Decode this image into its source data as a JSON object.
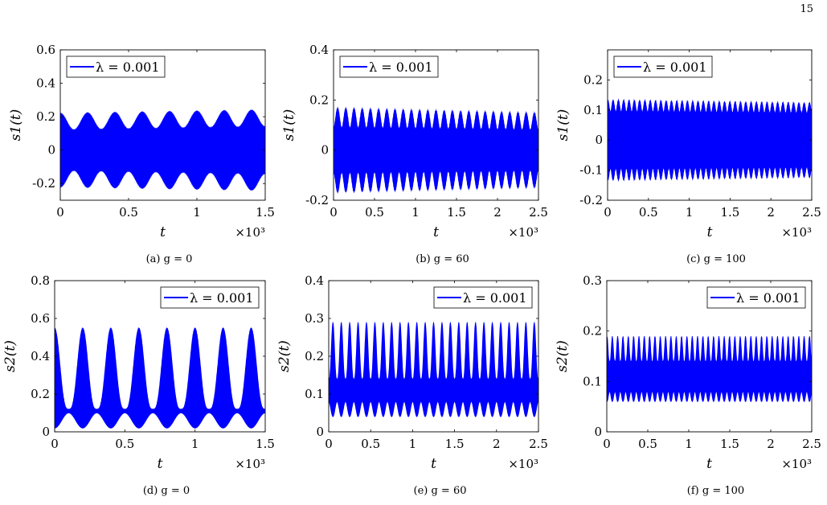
{
  "page_number": "15",
  "colors": {
    "series": "#0000ff",
    "axis": "#000000",
    "background": "#ffffff"
  },
  "chart_data": [
    {
      "type": "line",
      "caption": "(a) g = 0",
      "ylabel": "s1(t)",
      "xlabel": "t",
      "x_multiplier": "×10³",
      "xlim": [
        0,
        1.5
      ],
      "ylim": [
        -0.3,
        0.6
      ],
      "xticks": [
        0,
        0.5,
        1,
        1.5
      ],
      "xticklabels": [
        "0",
        "0.5",
        "1",
        "1.5"
      ],
      "yticks": [
        -0.2,
        0,
        0.2,
        0.4,
        0.6
      ],
      "yticklabels": [
        "-0.2",
        "0",
        "0.2",
        "0.4",
        "0.6"
      ],
      "legend": {
        "label": "λ = 0.001",
        "placement": "top-left"
      },
      "series": [
        {
          "name": "λ = 0.001",
          "color": "#0000ff",
          "envelope": {
            "center": 0,
            "amplitude_max": [
              0.22,
              0.24
            ],
            "amplitude_min": [
              0.12,
              0.14
            ],
            "slow_period": 0.2,
            "fast_cycles": 150
          }
        }
      ]
    },
    {
      "type": "line",
      "caption": "(b) g = 60",
      "ylabel": "s1(t)",
      "xlabel": "t",
      "x_multiplier": "×10³",
      "xlim": [
        0,
        2.5
      ],
      "ylim": [
        -0.2,
        0.4
      ],
      "xticks": [
        0,
        0.5,
        1,
        1.5,
        2,
        2.5
      ],
      "xticklabels": [
        "0",
        "0.5",
        "1",
        "1.5",
        "2",
        "2.5"
      ],
      "yticks": [
        -0.2,
        0,
        0.2,
        0.4
      ],
      "yticklabels": [
        "-0.2",
        "0",
        "0.2",
        "0.4"
      ],
      "legend": {
        "label": "λ = 0.001",
        "placement": "top-left"
      },
      "series": [
        {
          "name": "λ = 0.001",
          "color": "#0000ff",
          "envelope": {
            "center": 0,
            "amplitude_max": [
              0.17,
              0.15
            ],
            "amplitude_min": [
              0.09,
              0.08
            ],
            "slow_period": 0.1,
            "fast_cycles": 250
          }
        }
      ]
    },
    {
      "type": "line",
      "caption": "(c) g = 100",
      "ylabel": "s1(t)",
      "xlabel": "t",
      "x_multiplier": "×10³",
      "xlim": [
        0,
        2.5
      ],
      "ylim": [
        -0.2,
        0.3
      ],
      "xticks": [
        0,
        0.5,
        1,
        1.5,
        2,
        2.5
      ],
      "xticklabels": [
        "0",
        "0.5",
        "1",
        "1.5",
        "2",
        "2.5"
      ],
      "yticks": [
        -0.2,
        -0.1,
        0,
        0.1,
        0.2
      ],
      "yticklabels": [
        "-0.2",
        "-0.1",
        "0",
        "0.1",
        "0.2"
      ],
      "legend": {
        "label": "λ = 0.001",
        "placement": "top-left"
      },
      "series": [
        {
          "name": "λ = 0.001",
          "color": "#0000ff",
          "envelope": {
            "center": 0,
            "amplitude_max": [
              0.135,
              0.125
            ],
            "amplitude_min": [
              0.095,
              0.09
            ],
            "slow_period": 0.065,
            "fast_cycles": 300
          }
        }
      ]
    },
    {
      "type": "line",
      "caption": "(d) g = 0",
      "ylabel": "s2(t)",
      "xlabel": "t",
      "x_multiplier": "×10³",
      "xlim": [
        0,
        1.5
      ],
      "ylim": [
        0,
        0.8
      ],
      "xticks": [
        0,
        0.5,
        1,
        1.5
      ],
      "xticklabels": [
        "0",
        "0.5",
        "1",
        "1.5"
      ],
      "yticks": [
        0,
        0.2,
        0.4,
        0.6,
        0.8
      ],
      "yticklabels": [
        "0",
        "0.2",
        "0.4",
        "0.6",
        "0.8"
      ],
      "legend": {
        "label": "λ = 0.001",
        "placement": "top-right"
      },
      "series": [
        {
          "name": "λ = 0.001",
          "color": "#0000ff",
          "band": {
            "upper_peak": 0.55,
            "upper_trough": 0.12,
            "lower_trough": 0.02,
            "lower_peak": 0.1,
            "slow_period": 0.2
          }
        }
      ]
    },
    {
      "type": "line",
      "caption": "(e) g = 60",
      "ylabel": "s2(t)",
      "xlabel": "t",
      "x_multiplier": "×10³",
      "xlim": [
        0,
        2.5
      ],
      "ylim": [
        0,
        0.4
      ],
      "xticks": [
        0,
        0.5,
        1,
        1.5,
        2,
        2.5
      ],
      "xticklabels": [
        "0",
        "0.5",
        "1",
        "1.5",
        "2",
        "2.5"
      ],
      "yticks": [
        0,
        0.1,
        0.2,
        0.3,
        0.4
      ],
      "yticklabels": [
        "0",
        "0.1",
        "0.2",
        "0.3",
        "0.4"
      ],
      "legend": {
        "label": "λ = 0.001",
        "placement": "top-right"
      },
      "series": [
        {
          "name": "λ = 0.001",
          "color": "#0000ff",
          "band": {
            "upper_peak": 0.29,
            "upper_trough": 0.14,
            "lower_trough": 0.04,
            "lower_peak": 0.08,
            "slow_period": 0.1
          }
        }
      ]
    },
    {
      "type": "line",
      "caption": "(f) g = 100",
      "ylabel": "s2(t)",
      "xlabel": "t",
      "x_multiplier": "×10³",
      "xlim": [
        0,
        2.5
      ],
      "ylim": [
        0,
        0.3
      ],
      "xticks": [
        0,
        0.5,
        1,
        1.5,
        2,
        2.5
      ],
      "xticklabels": [
        "0",
        "0.5",
        "1",
        "1.5",
        "2",
        "2.5"
      ],
      "yticks": [
        0,
        0.1,
        0.2,
        0.3
      ],
      "yticklabels": [
        "0",
        "0.1",
        "0.2",
        "0.3"
      ],
      "legend": {
        "label": "λ = 0.001",
        "placement": "top-right"
      },
      "series": [
        {
          "name": "λ = 0.001",
          "color": "#0000ff",
          "band": {
            "upper_peak": 0.19,
            "upper_trough": 0.14,
            "lower_trough": 0.06,
            "lower_peak": 0.08,
            "slow_period": 0.065
          }
        }
      ]
    }
  ]
}
